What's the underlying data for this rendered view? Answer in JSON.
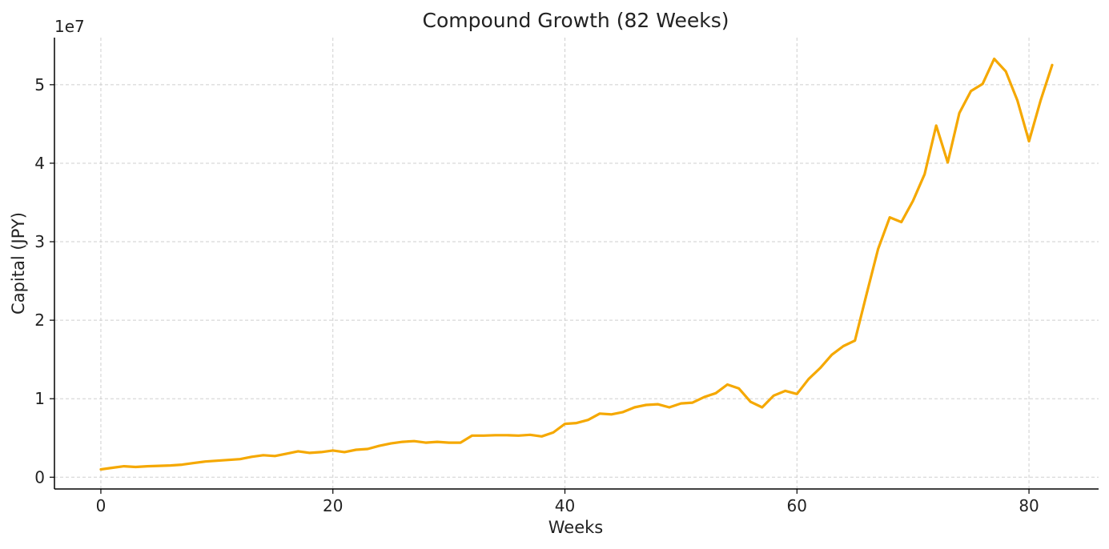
{
  "chart_data": {
    "type": "line",
    "title": "Compound Growth (82 Weeks)",
    "xlabel": "Weeks",
    "ylabel": "Capital (JPY)",
    "y_offset_label": "1e7",
    "xlim": [
      -4,
      86
    ],
    "ylim": [
      -0.15,
      5.6
    ],
    "y_scale_factor": 10000000,
    "xticks": [
      0,
      20,
      40,
      60,
      80
    ],
    "yticks": [
      0,
      1,
      2,
      3,
      4,
      5
    ],
    "grid": true,
    "legend": "none",
    "series": [
      {
        "color": "#f5a800",
        "x": [
          0,
          1,
          2,
          3,
          4,
          5,
          6,
          7,
          8,
          9,
          10,
          11,
          12,
          13,
          14,
          15,
          16,
          17,
          18,
          19,
          20,
          21,
          22,
          23,
          24,
          25,
          26,
          27,
          28,
          29,
          30,
          31,
          32,
          33,
          34,
          35,
          36,
          37,
          38,
          39,
          40,
          41,
          42,
          43,
          44,
          45,
          46,
          47,
          48,
          49,
          50,
          51,
          52,
          53,
          54,
          55,
          56,
          57,
          58,
          59,
          60,
          61,
          62,
          63,
          64,
          65,
          66,
          67,
          68,
          69,
          70,
          71,
          72,
          73,
          74,
          75,
          76,
          77,
          78,
          79,
          80,
          81,
          82
        ],
        "y": [
          0.1,
          0.12,
          0.14,
          0.13,
          0.14,
          0.145,
          0.15,
          0.16,
          0.18,
          0.2,
          0.21,
          0.22,
          0.23,
          0.26,
          0.28,
          0.27,
          0.3,
          0.33,
          0.31,
          0.32,
          0.34,
          0.32,
          0.35,
          0.36,
          0.4,
          0.43,
          0.45,
          0.46,
          0.44,
          0.45,
          0.44,
          0.44,
          0.53,
          0.53,
          0.535,
          0.535,
          0.53,
          0.54,
          0.52,
          0.57,
          0.68,
          0.69,
          0.73,
          0.81,
          0.8,
          0.83,
          0.89,
          0.92,
          0.93,
          0.89,
          0.94,
          0.95,
          1.02,
          1.07,
          1.18,
          1.13,
          0.96,
          0.89,
          1.04,
          1.1,
          1.06,
          1.25,
          1.39,
          1.56,
          1.67,
          1.74,
          2.33,
          2.91,
          3.31,
          3.25,
          3.52,
          3.86,
          4.48,
          4.01,
          4.64,
          4.92,
          5.01,
          5.33,
          5.17,
          4.8,
          4.28,
          4.8,
          5.25
        ]
      }
    ]
  }
}
